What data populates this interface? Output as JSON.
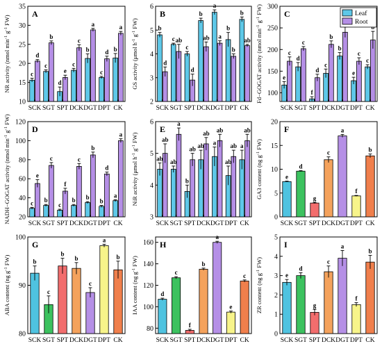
{
  "colors": {
    "leaf": "#5ec8e8",
    "root": "#b58fe6",
    "SCK": "#4fc3e0",
    "SGT": "#3cc25f",
    "SPT": "#f26d6d",
    "DCK": "#f4a25c",
    "DGT": "#b58fe6",
    "DPT": "#f7f48a",
    "CK": "#f07f4c"
  },
  "legend": {
    "leaf": "Leaf",
    "root": "Root"
  },
  "chart_data": [
    {
      "id": "A",
      "type": "bar",
      "panel_label": "A",
      "categories": [
        "SCK",
        "SGT",
        "SPT",
        "DCK",
        "DGT",
        "DPT",
        "CK"
      ],
      "ylabel": "NR activity (nmol min⁻¹ g⁻¹ FW)",
      "ylim": [
        10,
        35
      ],
      "yticks": [
        10,
        15,
        20,
        25,
        30,
        35
      ],
      "series": [
        {
          "name": "Leaf",
          "values": [
            15.6,
            17.9,
            12.6,
            18.2,
            21.3,
            16.3,
            21.4
          ],
          "errors": [
            0.5,
            0.4,
            1.2,
            0.5,
            1.2,
            0.3,
            1.2
          ],
          "letters": [
            "c",
            "c",
            "d",
            "c",
            "b",
            "c",
            "b"
          ]
        },
        {
          "name": "Root",
          "values": [
            20.6,
            25.4,
            16.3,
            24.1,
            28.8,
            21.2,
            27.9
          ],
          "errors": [
            0.4,
            0.5,
            0.6,
            0.8,
            0.4,
            0.7,
            0.5
          ],
          "letters": [
            "d",
            "b",
            "e",
            "c",
            "a",
            "d",
            "a"
          ]
        }
      ]
    },
    {
      "id": "B",
      "type": "bar",
      "panel_label": "B",
      "categories": [
        "SCK",
        "SGT",
        "SPT",
        "DCK",
        "DGT",
        "DPT",
        "CK"
      ],
      "ylabel": "GS activity (μmol h⁻¹ g⁻¹ FW)",
      "ylim": [
        2,
        6
      ],
      "yticks": [
        2,
        3,
        4,
        5,
        6
      ],
      "series": [
        {
          "name": "Leaf",
          "values": [
            4.8,
            4.4,
            4.0,
            5.4,
            5.75,
            4.6,
            5.45
          ],
          "errors": [
            0.1,
            0.05,
            0.1,
            0.1,
            0.1,
            0.3,
            0.1
          ],
          "letters": [
            "b",
            "c",
            "c",
            "b",
            "a",
            "b",
            "b"
          ]
        },
        {
          "name": "Root",
          "values": [
            3.25,
            4.1,
            2.9,
            4.3,
            4.45,
            3.9,
            4.35
          ],
          "errors": [
            0.2,
            0.3,
            0.25,
            0.2,
            0.1,
            0.1,
            0.05
          ],
          "letters": [
            "d",
            "ab",
            "d",
            "ab",
            "a",
            "b",
            "ab"
          ]
        }
      ]
    },
    {
      "id": "C",
      "type": "bar",
      "panel_label": "C",
      "categories": [
        "SCK",
        "SGT",
        "SPT",
        "DCK",
        "DGT",
        "DPT",
        "CK"
      ],
      "ylabel": "Fd−GOGAT activity (nmol min⁻¹ g⁻¹ FW)",
      "ylim": [
        80,
        300
      ],
      "yticks": [
        100,
        150,
        200,
        250,
        300
      ],
      "legend_position": "top-right",
      "series": [
        {
          "name": "Leaf",
          "values": [
            118,
            160,
            86,
            145,
            185,
            128,
            160
          ],
          "errors": [
            8,
            10,
            5,
            10,
            8,
            8,
            5
          ],
          "letters": [
            "e",
            "d",
            "f",
            "c",
            "b",
            "e",
            "c"
          ]
        },
        {
          "name": "Root",
          "values": [
            173,
            202,
            135,
            212,
            240,
            173,
            222
          ],
          "errors": [
            10,
            5,
            8,
            8,
            12,
            8,
            20
          ],
          "letters": [
            "c",
            "c",
            "d",
            "b",
            "a",
            "c",
            "b"
          ]
        }
      ]
    },
    {
      "id": "D",
      "type": "bar",
      "panel_label": "D",
      "categories": [
        "SCK",
        "SGT",
        "SPT",
        "DCK",
        "DGT",
        "DPT",
        "CK"
      ],
      "ylabel": "NADH−GOGAT activity (nmol min⁻¹ g⁻¹ FW)",
      "ylim": [
        20,
        120
      ],
      "yticks": [
        20,
        40,
        60,
        80,
        100,
        120
      ],
      "series": [
        {
          "name": "Leaf",
          "values": [
            29,
            32,
            27,
            32,
            35,
            31,
            37
          ],
          "errors": [
            1,
            1,
            1,
            1,
            1,
            1,
            1
          ],
          "letters": [
            "c",
            "b",
            "c",
            "b",
            "b",
            "b",
            "a"
          ]
        },
        {
          "name": "Root",
          "values": [
            55,
            74,
            47,
            73,
            85,
            65,
            100
          ],
          "errors": [
            4,
            3,
            3,
            3,
            3,
            2,
            2
          ],
          "letters": [
            "e",
            "c",
            "f",
            "c",
            "b",
            "d",
            "a"
          ]
        }
      ]
    },
    {
      "id": "E",
      "type": "bar",
      "panel_label": "E",
      "categories": [
        "SCK",
        "SGT",
        "SPT",
        "DCK",
        "DGT",
        "DPT",
        "CK"
      ],
      "ylabel": "NiR activity (μmol h⁻¹ g⁻¹ FW)",
      "ylim": [
        3,
        6
      ],
      "yticks": [
        3,
        4,
        5,
        6
      ],
      "series": [
        {
          "name": "Leaf",
          "values": [
            4.5,
            4.5,
            3.8,
            4.8,
            4.9,
            4.3,
            4.8
          ],
          "errors": [
            0.2,
            0.1,
            0.2,
            0.3,
            0.3,
            0.3,
            0.3
          ],
          "letters": [
            "ab",
            "ab",
            "b",
            "ab",
            "a",
            "ab",
            "a"
          ]
        },
        {
          "name": "Root",
          "values": [
            5.0,
            5.6,
            4.8,
            5.3,
            5.4,
            4.9,
            5.4
          ],
          "errors": [
            0.3,
            0.2,
            0.2,
            0.2,
            0.2,
            0.2,
            0.2
          ],
          "letters": [
            "ab",
            "a",
            "ab",
            "ab",
            "ab",
            "ab",
            "ab"
          ]
        }
      ]
    },
    {
      "id": "F",
      "type": "bar",
      "panel_label": "F",
      "categories": [
        "SCK",
        "SGT",
        "SPT",
        "DCK",
        "DGT",
        "DPT",
        "CK"
      ],
      "ylabel": "GA3 content (ng g⁻¹ FW)",
      "ylim": [
        0,
        20
      ],
      "yticks": [
        0,
        5,
        10,
        15,
        20
      ],
      "series": [
        {
          "name": "",
          "values": [
            7.4,
            9.6,
            2.9,
            12.0,
            17.0,
            4.4,
            12.8
          ],
          "errors": [
            0.1,
            0.1,
            0.1,
            0.6,
            0.3,
            0.1,
            0.4
          ],
          "letters": [
            "e",
            "d",
            "g",
            "c",
            "a",
            "f",
            "b"
          ]
        }
      ]
    },
    {
      "id": "G",
      "type": "bar",
      "panel_label": "G",
      "categories": [
        "SCK",
        "SGT",
        "SPT",
        "DCK",
        "DGT",
        "DPT",
        "CK"
      ],
      "ylabel": "ABA content (ng g⁻¹ FW)",
      "ylim": [
        80,
        100
      ],
      "yticks": [
        80,
        90,
        100
      ],
      "series": [
        {
          "name": "",
          "values": [
            92.5,
            86.0,
            94.0,
            93.5,
            88.5,
            98.2,
            93.2
          ],
          "errors": [
            1.5,
            1.8,
            1.6,
            1.2,
            1.0,
            0.3,
            1.8
          ],
          "letters": [
            "b",
            "c",
            "b",
            "b",
            "c",
            "a",
            "b"
          ]
        }
      ]
    },
    {
      "id": "H",
      "type": "bar",
      "panel_label": "H",
      "categories": [
        "SCK",
        "SGT",
        "SPT",
        "DCK",
        "DGT",
        "DPT",
        "CK"
      ],
      "ylabel": "IAA content (ng g⁻¹ FW)",
      "ylim": [
        75,
        165
      ],
      "yticks": [
        80,
        100,
        120,
        140,
        160
      ],
      "series": [
        {
          "name": "",
          "values": [
            107,
            127,
            78,
            135,
            160,
            95,
            124
          ],
          "errors": [
            1,
            1,
            1,
            1,
            1,
            1,
            1
          ],
          "letters": [
            "d",
            "c",
            "f",
            "b",
            "a",
            "e",
            "c"
          ]
        }
      ]
    },
    {
      "id": "I",
      "type": "bar",
      "panel_label": "I",
      "categories": [
        "SCK",
        "SGT",
        "SPT",
        "DCK",
        "DGT",
        "DPT",
        "CK"
      ],
      "ylabel": "ZR content (ng g⁻¹ FW)",
      "ylim": [
        0,
        5
      ],
      "yticks": [
        0,
        1,
        2,
        3,
        4,
        5
      ],
      "series": [
        {
          "name": "",
          "values": [
            2.65,
            3.0,
            1.1,
            3.2,
            3.9,
            1.5,
            3.7
          ],
          "errors": [
            0.15,
            0.15,
            0.15,
            0.3,
            0.4,
            0.1,
            0.35
          ],
          "letters": [
            "e",
            "d",
            "g",
            "c",
            "a",
            "f",
            "b"
          ]
        }
      ]
    }
  ]
}
